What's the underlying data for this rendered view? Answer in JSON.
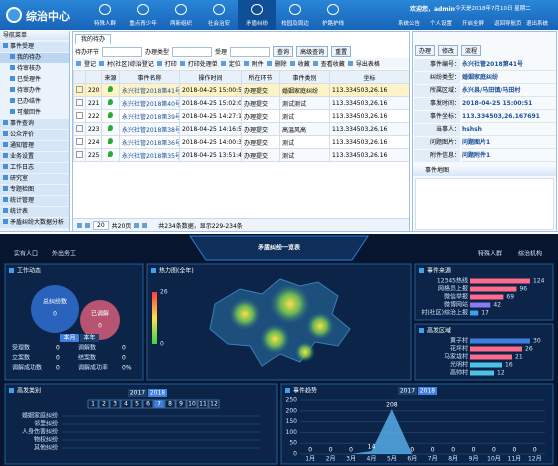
{
  "header": {
    "title": "综治中心",
    "nav": [
      "特殊人群",
      "重点青少年",
      "两新组织",
      "社会治安",
      "矛盾纠纷",
      "校园及周边",
      "护路护线"
    ],
    "welcome": "欢迎您，admin",
    "date": "今天是2018年7月10日 星期二",
    "links": [
      "系统公告",
      "个人设置",
      "开启全屏",
      "返回导航页",
      "退出系统"
    ]
  },
  "sidebar": {
    "title": "导航菜单",
    "items": [
      "事件受理",
      "我的待办",
      "待审核办",
      "已受理件",
      "待审办件",
      "已办结件",
      "可撤回件",
      "事件查询",
      "公众评价",
      "通知管理",
      "业务设置",
      "工作日志",
      "研究室",
      "专题检图",
      "统计管理",
      "统计表",
      "矛盾纠纷大数据分析"
    ]
  },
  "main": {
    "tab": "我的待办",
    "search": [
      "待办环节",
      "办理类型",
      "受理"
    ],
    "search_buttons": [
      "查询",
      "高级查询",
      "重置"
    ],
    "toolbar": [
      "登记",
      "村(社区)综治登记",
      "打印",
      "打印处理单",
      "定位",
      "附件",
      "删除",
      "收藏",
      "查看收藏",
      "导出表格"
    ],
    "table": {
      "headers": [
        "来源",
        "事件名称",
        "操作时间",
        "所在环节",
        "事件类别",
        "坐标"
      ],
      "rows": [
        [
          "220",
          "永兴社管2018第41号",
          "2018-04-25 15:00:51",
          "办理提交",
          "婚姻家庭纠纷",
          "113.334503,26.16"
        ],
        [
          "221",
          "永兴社管2018第40号",
          "2018-04-25 15:02:03",
          "办理提交",
          "测试测试",
          "113.334503,26.16"
        ],
        [
          "222",
          "永兴社管2018第39号",
          "2018-04-25 14:27:14",
          "办理提交",
          "测试",
          "113.334503,26.16"
        ],
        [
          "223",
          "永兴社管2018第38号",
          "2018-04-25 14:16:55",
          "办理提交",
          "高温风高",
          "113.334503,26.16"
        ],
        [
          "224",
          "永兴社管2018第36号",
          "2018-04-25 14:00:31",
          "办理提交",
          "测试",
          "113.334503,26.16"
        ],
        [
          "225",
          "永兴社管2018第35号",
          "2018-04-25 13:51:41",
          "办理提交",
          "测试",
          "113.334503,26.16"
        ]
      ]
    },
    "pager": {
      "page": "20",
      "pages": "共20页",
      "info": "共234条数据，显示229-234条"
    }
  },
  "detail": {
    "buttons": [
      "办理",
      "修改",
      "流程"
    ],
    "fields": [
      [
        "事件编号：",
        "永兴社管2018第41号"
      ],
      [
        "纠纷类型：",
        "婚姻家庭纠纷"
      ],
      [
        "所属区域：",
        "永兴县/马田镇/马田村"
      ],
      [
        "事发时间：",
        "2018-04-25 15:00:51"
      ],
      [
        "事件坐标：",
        "113.334503,26.167691"
      ],
      [
        "当事人：",
        "hshsh"
      ],
      [
        "问题图片：",
        "问题图片1"
      ],
      [
        "附件信息：",
        "问题附件1"
      ]
    ],
    "map": "事件地图"
  },
  "dashboard": {
    "title": "矛盾纠纷一览表",
    "top_left": [
      "实有人口",
      "外出务工"
    ],
    "top_right": [
      "特殊人群",
      "综治机构"
    ],
    "work": {
      "title": "工作动态",
      "total_label": "总纠纷数",
      "total": "0",
      "mediated_label": "已调解",
      "mediated": "0",
      "tabs": [
        "本月",
        "本年"
      ],
      "stats": [
        [
          "受理数",
          "0"
        ],
        [
          "调解数",
          "0"
        ],
        [
          "立案数",
          "0"
        ],
        [
          "结案数",
          "0"
        ],
        [
          "调解成功数",
          "0"
        ],
        [
          "调解成功率",
          "0%"
        ]
      ]
    },
    "heat": {
      "title": "热力图(全年)",
      "legend": [
        26,
        0
      ]
    },
    "source": {
      "type": "bar",
      "title": "事件来源",
      "categories": [
        "12345热线",
        "网格员上报",
        "微信举报",
        "微博网站",
        "村(社区)综治上报"
      ],
      "values": [
        124,
        96,
        69,
        42,
        17
      ],
      "colors": [
        "#ff6b8a",
        "#ff6b8a",
        "#ff6b8a",
        "#8a7cf0",
        "#3fa0f0"
      ]
    },
    "region": {
      "type": "bar",
      "title": "高发区域",
      "categories": [
        "黄子村",
        "花坪村",
        "马家垅村",
        "光明村",
        "高帅村"
      ],
      "values": [
        30,
        26,
        21,
        16,
        12
      ],
      "colors": [
        "#3f7fe0",
        "#ff6b8a",
        "#ff6b8a",
        "#4fc0e8",
        "#4fc0e8"
      ]
    },
    "category": {
      "title": "高发类别",
      "years": [
        "2017",
        "2018"
      ],
      "months": [
        "1",
        "2",
        "3",
        "4",
        "5",
        "6",
        "7",
        "8",
        "9",
        "10",
        "11",
        "12"
      ],
      "items": [
        "婚姻家庭纠纷",
        "邻里纠纷",
        "人身伤害纠纷",
        "物权纠纷",
        "其他纠纷"
      ]
    },
    "trend": {
      "type": "area",
      "title": "事件趋势",
      "years": [
        "2017",
        "2018"
      ],
      "categories": [
        "1月",
        "2月",
        "3月",
        "4月",
        "5月",
        "6月",
        "7月",
        "8月",
        "9月",
        "10月",
        "11月",
        "12月"
      ],
      "values": [
        0,
        0,
        0,
        14,
        208,
        0,
        0,
        0,
        0,
        0,
        0,
        0
      ],
      "ylim": [
        0,
        250
      ],
      "yticks": [
        0,
        50,
        100,
        150,
        200,
        250
      ],
      "color": "#5ab4f0"
    }
  }
}
